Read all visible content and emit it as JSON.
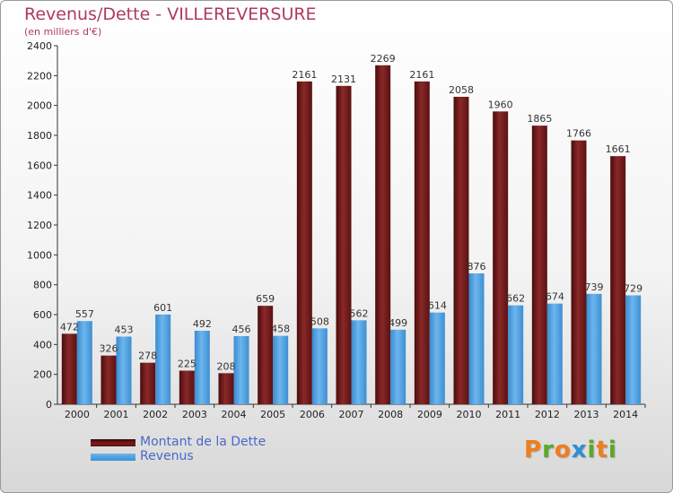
{
  "header": {
    "title": "Revenus/Dette - VILLEREVERSURE",
    "subtitle": "(en milliers d'€)"
  },
  "legend": {
    "dette_label": "Montant de la Dette",
    "revenus_label": "Revenus"
  },
  "logo": {
    "text": "Proxiti",
    "letters": [
      {
        "char": "P",
        "color": "#f07d1c"
      },
      {
        "char": "r",
        "color": "#5ba829"
      },
      {
        "char": "o",
        "color": "#f07d1c"
      },
      {
        "char": "x",
        "color": "#2d8fd4"
      },
      {
        "char": "i",
        "color": "#5ba829"
      },
      {
        "char": "t",
        "color": "#f07d1c"
      },
      {
        "char": "i",
        "color": "#5ba829"
      }
    ]
  },
  "colors": {
    "title": "#b03a5b",
    "dette": "#6e1a1a",
    "revenus": "#4a9fe0",
    "legend_text": "#4a68c8"
  },
  "chart_data": {
    "type": "bar",
    "categories": [
      "2000",
      "2001",
      "2002",
      "2003",
      "2004",
      "2005",
      "2006",
      "2007",
      "2008",
      "2009",
      "2010",
      "2011",
      "2012",
      "2013",
      "2014"
    ],
    "series": [
      {
        "name": "Montant de la Dette",
        "values": [
          472,
          326,
          278,
          225,
          208,
          659,
          2161,
          2131,
          2269,
          2161,
          2058,
          1960,
          1865,
          1766,
          1661
        ]
      },
      {
        "name": "Revenus",
        "values": [
          557,
          453,
          601,
          492,
          456,
          458,
          508,
          562,
          499,
          614,
          876,
          662,
          674,
          739,
          729
        ]
      }
    ],
    "y_ticks": [
      0,
      200,
      400,
      600,
      800,
      1000,
      1200,
      1400,
      1600,
      1800,
      2000,
      2200,
      2400
    ],
    "ylim": [
      0,
      2400
    ],
    "grid": false,
    "legend_position": "bottom-left"
  }
}
